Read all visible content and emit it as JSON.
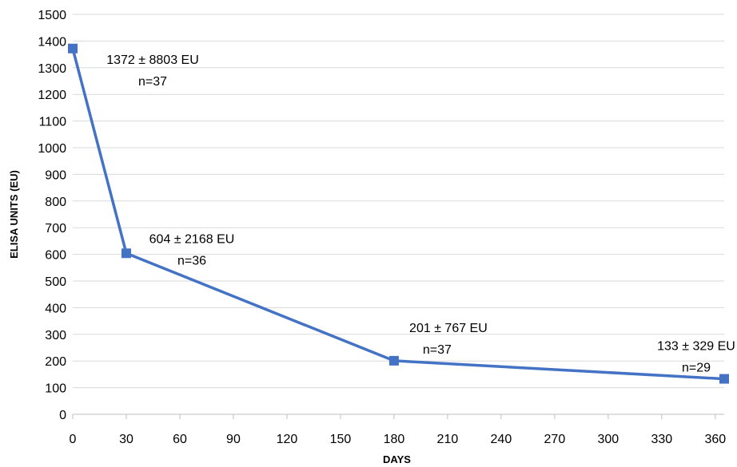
{
  "chart_data": {
    "type": "line",
    "xlabel": "DAYS",
    "ylabel": "ELISA UNITS (EU)",
    "xlim": [
      0,
      365
    ],
    "ylim": [
      0,
      1500
    ],
    "xticks": [
      0,
      30,
      60,
      90,
      120,
      150,
      180,
      210,
      240,
      270,
      300,
      330,
      360
    ],
    "yticks": [
      0,
      100,
      200,
      300,
      400,
      500,
      600,
      700,
      800,
      900,
      1000,
      1100,
      1200,
      1300,
      1400,
      1500
    ],
    "grid": "horizontal",
    "series": [
      {
        "x": [
          0,
          30,
          180,
          365
        ],
        "y": [
          1372,
          604,
          201,
          133
        ],
        "color": "#4472c4",
        "marker": "square"
      }
    ],
    "annotations": [
      {
        "label": "1372 ± 8803 EU",
        "n": "n=37"
      },
      {
        "label": "604 ± 2168 EU",
        "n": "n=36"
      },
      {
        "label": "201 ± 767 EU",
        "n": "n=37"
      },
      {
        "label": "133 ± 329 EU",
        "n": "n=29"
      }
    ]
  }
}
